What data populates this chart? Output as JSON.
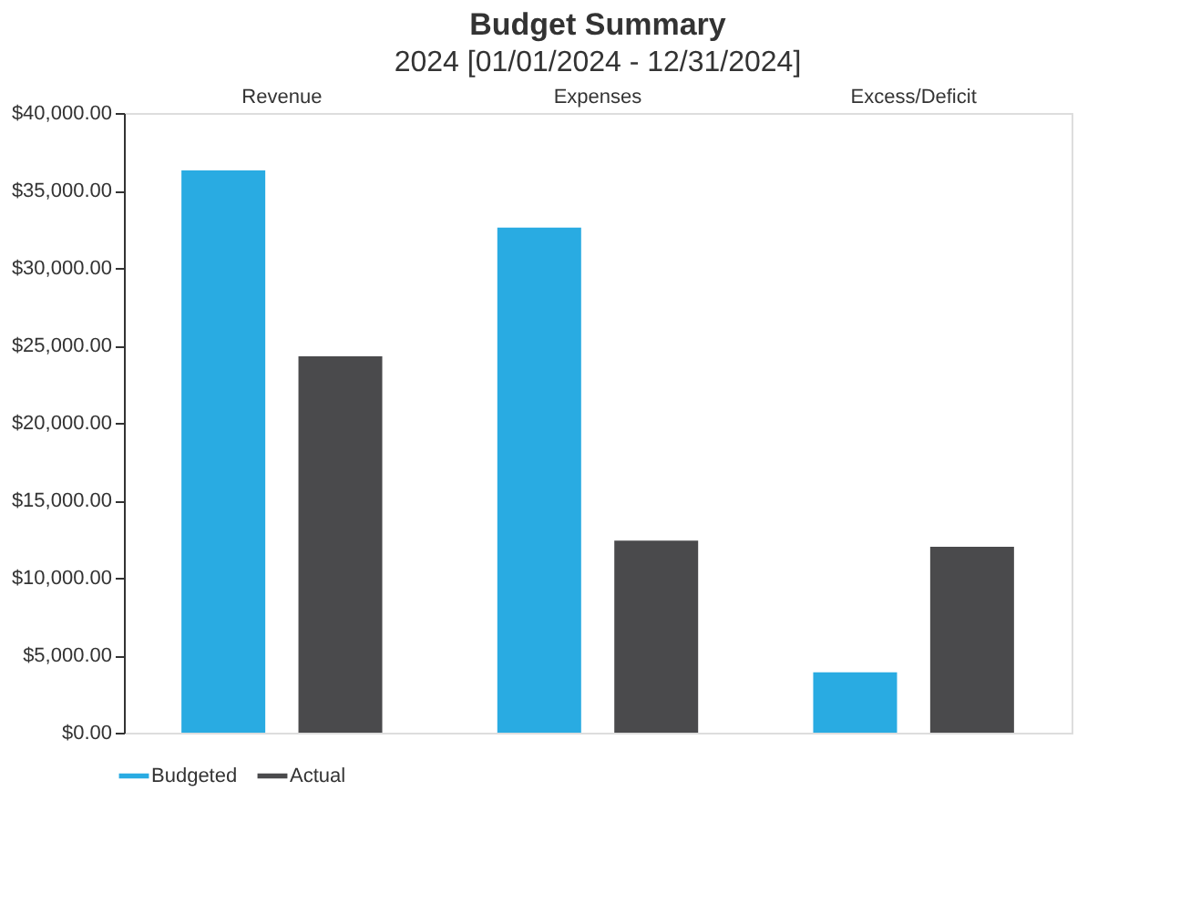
{
  "chart_data": {
    "type": "bar",
    "title": "Budget Summary",
    "subtitle": "2024 [01/01/2024 - 12/31/2024]",
    "categories": [
      "Revenue",
      "Expenses",
      "Excess/Deficit"
    ],
    "series": [
      {
        "name": "Budgeted",
        "color": "#29abe2",
        "values": [
          36300,
          32600,
          3900
        ]
      },
      {
        "name": "Actual",
        "color": "#4a4a4c",
        "values": [
          24300,
          12400,
          12000
        ]
      }
    ],
    "ylim": [
      0,
      40000
    ],
    "yticks": [
      {
        "value": 0,
        "label": "$0.00"
      },
      {
        "value": 5000,
        "label": "$5,000.00"
      },
      {
        "value": 10000,
        "label": "$10,000.00"
      },
      {
        "value": 15000,
        "label": "$15,000.00"
      },
      {
        "value": 20000,
        "label": "$20,000.00"
      },
      {
        "value": 25000,
        "label": "$25,000.00"
      },
      {
        "value": 30000,
        "label": "$30,000.00"
      },
      {
        "value": 35000,
        "label": "$35,000.00"
      },
      {
        "value": 40000,
        "label": "$40,000.00"
      }
    ],
    "grid": false,
    "legend": "bottom"
  }
}
